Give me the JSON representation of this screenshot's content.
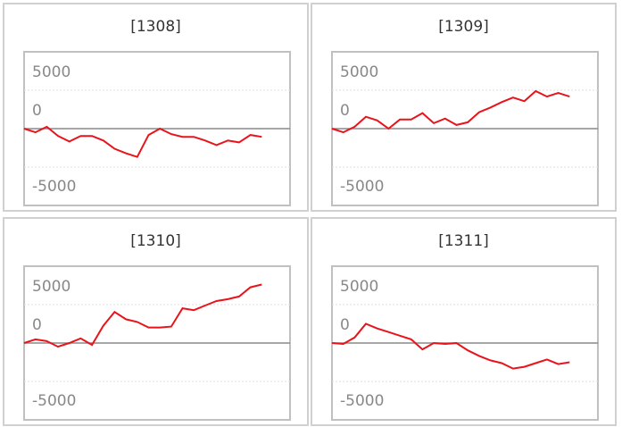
{
  "chart_data": [
    {
      "type": "line",
      "title": "[1308]",
      "color": "#e8141c",
      "ylim": [
        -10000,
        10000
      ],
      "yticks": [
        5000,
        0,
        -5000
      ],
      "values": [
        0,
        -480,
        240,
        -950,
        -1670,
        -950,
        -950,
        -1550,
        -2620,
        -3210,
        -3690,
        -830,
        0,
        -710,
        -1070,
        -1070,
        -1550,
        -2140,
        -1550,
        -1790,
        -830,
        -1070
      ]
    },
    {
      "type": "line",
      "title": "[1309]",
      "color": "#e8141c",
      "ylim": [
        -10000,
        10000
      ],
      "yticks": [
        5000,
        0,
        -5000
      ],
      "values": [
        0,
        -480,
        240,
        1550,
        1070,
        0,
        1190,
        1190,
        2020,
        710,
        1310,
        480,
        830,
        2140,
        2740,
        3450,
        4050,
        3570,
        4880,
        4170,
        4640,
        4170
      ]
    },
    {
      "type": "line",
      "title": "[1310]",
      "color": "#e8141c",
      "ylim": [
        -10000,
        10000
      ],
      "yticks": [
        5000,
        0,
        -5000
      ],
      "values": [
        0,
        480,
        240,
        -480,
        0,
        600,
        -240,
        2260,
        4050,
        3090,
        2740,
        2020,
        2020,
        2140,
        4520,
        4280,
        4880,
        5470,
        5710,
        6060,
        7260,
        7620
      ]
    },
    {
      "type": "line",
      "title": "[1311]",
      "color": "#e8141c",
      "ylim": [
        -10000,
        10000
      ],
      "yticks": [
        5000,
        0,
        -5000
      ],
      "values": [
        0,
        -120,
        720,
        2500,
        1900,
        1430,
        950,
        480,
        -830,
        0,
        -120,
        0,
        -950,
        -1670,
        -2260,
        -2620,
        -3330,
        -3090,
        -2620,
        -2140,
        -2740,
        -2500
      ]
    }
  ]
}
